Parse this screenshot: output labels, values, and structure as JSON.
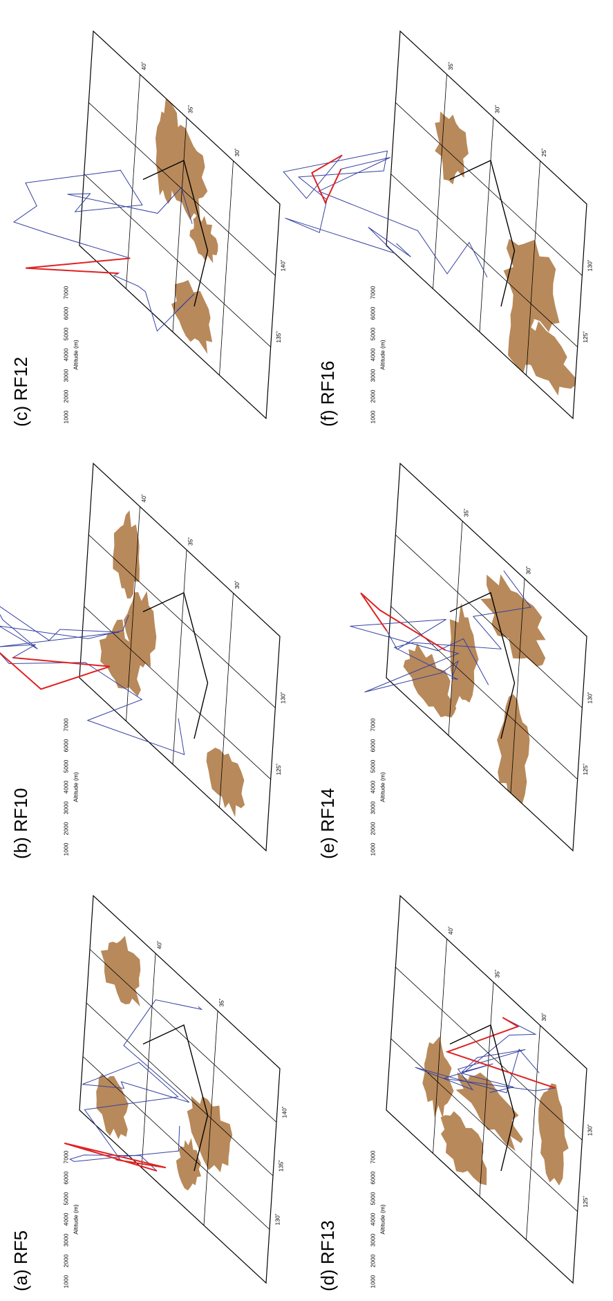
{
  "panels": [
    {
      "label": "(a) RF5",
      "axis_title": "Altitude (m)",
      "altitude_ticks": [
        1000,
        2000,
        3000,
        4000,
        5000,
        6000,
        7000
      ],
      "lon_labels": [
        "130˚",
        "135˚",
        "140˚"
      ],
      "lat_labels": [
        "35˚",
        "40˚"
      ]
    },
    {
      "label": "(b) RF10",
      "axis_title": "Altitude (m)",
      "altitude_ticks": [
        1000,
        2000,
        3000,
        4000,
        5000,
        6000,
        7000
      ],
      "lon_labels": [
        "125˚",
        "130˚"
      ],
      "lat_labels": [
        "30˚",
        "35˚",
        "40˚"
      ]
    },
    {
      "label": "(c) RF12",
      "axis_title": "Altitude (m)",
      "altitude_ticks": [
        1000,
        2000,
        3000,
        4000,
        5000,
        6000,
        7000
      ],
      "lon_labels": [
        "135˚",
        "140˚"
      ],
      "lat_labels": [
        "30˚",
        "35˚",
        "40˚"
      ]
    },
    {
      "label": "(d) RF13",
      "axis_title": "Altitude (m)",
      "altitude_ticks": [
        1000,
        2000,
        3000,
        4000,
        5000,
        6000,
        7000
      ],
      "lon_labels": [
        "125˚",
        "130˚"
      ],
      "lat_labels": [
        "30˚",
        "35˚",
        "40˚"
      ]
    },
    {
      "label": "(e) RF14",
      "axis_title": "Altitude (m)",
      "altitude_ticks": [
        1000,
        2000,
        3000,
        4000,
        5000,
        6000,
        7000
      ],
      "lon_labels": [
        "125˚",
        "130˚"
      ],
      "lat_labels": [
        "30˚",
        "35˚"
      ]
    },
    {
      "label": "(f) RF16",
      "axis_title": "Altitude (m)",
      "altitude_ticks": [
        1000,
        2000,
        3000,
        4000,
        5000,
        6000,
        7000
      ],
      "lon_labels": [
        "125˚",
        "130˚"
      ],
      "lat_labels": [
        "25˚",
        "30˚",
        "35˚"
      ]
    }
  ]
}
